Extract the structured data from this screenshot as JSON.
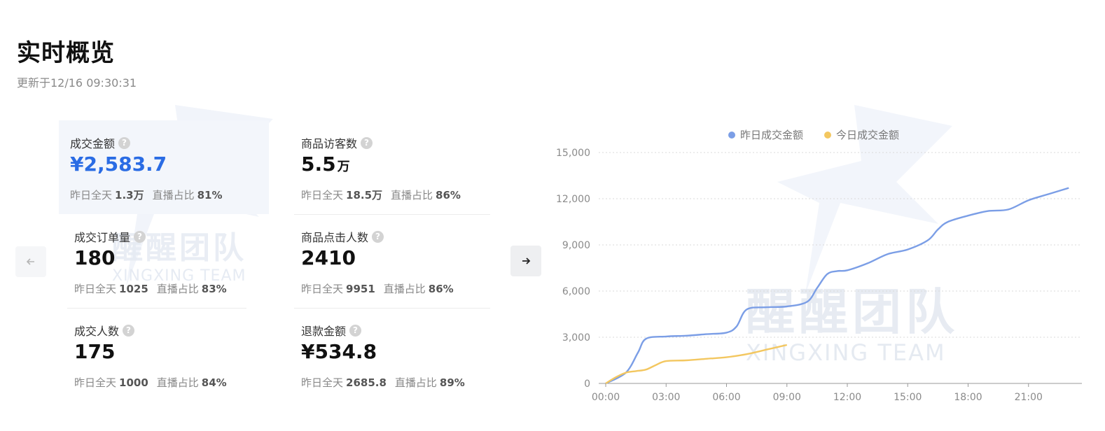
{
  "header": {
    "title": "实时概览",
    "update_time": "更新于12/16 09:30:31"
  },
  "nav": {
    "prev_icon": "arrow-left-icon",
    "next_icon": "arrow-right-icon"
  },
  "watermark": {
    "cn": "醒醒团队",
    "en": "XINGXING TEAM"
  },
  "metrics": [
    {
      "label": "成交金额",
      "value": "¥2,583.7",
      "unit": "",
      "yesterday_label": "昨日全天",
      "yesterday_value": "1.3万",
      "live_label": "直播占比",
      "live_value": "81%"
    },
    {
      "label": "商品访客数",
      "value": "5.5",
      "unit": "万",
      "yesterday_label": "昨日全天",
      "yesterday_value": "18.5万",
      "live_label": "直播占比",
      "live_value": "86%"
    },
    {
      "label": "成交订单量",
      "value": "180",
      "unit": "",
      "yesterday_label": "昨日全天",
      "yesterday_value": "1025",
      "live_label": "直播占比",
      "live_value": "83%"
    },
    {
      "label": "商品点击人数",
      "value": "2410",
      "unit": "",
      "yesterday_label": "昨日全天",
      "yesterday_value": "9951",
      "live_label": "直播占比",
      "live_value": "86%"
    },
    {
      "label": "成交人数",
      "value": "175",
      "unit": "",
      "yesterday_label": "昨日全天",
      "yesterday_value": "1000",
      "live_label": "直播占比",
      "live_value": "84%"
    },
    {
      "label": "退款金额",
      "value": "¥534.8",
      "unit": "",
      "yesterday_label": "昨日全天",
      "yesterday_value": "2685.8",
      "live_label": "直播占比",
      "live_value": "89%"
    }
  ],
  "chart_data": {
    "type": "line",
    "title": "",
    "xlabel": "",
    "ylabel": "",
    "ylim": [
      0,
      15000
    ],
    "yticks": [
      "0",
      "3,000",
      "6,000",
      "9,000",
      "12,000",
      "15,000"
    ],
    "xticks": [
      "00:00",
      "03:00",
      "06:00",
      "09:00",
      "12:00",
      "15:00",
      "18:00",
      "21:00"
    ],
    "xlim_hours": [
      0,
      24
    ],
    "legend_position": "top-center",
    "grid": true,
    "series": [
      {
        "name": "昨日成交金额",
        "color": "#7b9ee6",
        "x": [
          0,
          1,
          1.6,
          2,
          3,
          4,
          5,
          6,
          6.5,
          7,
          8,
          9,
          10,
          10.5,
          11,
          11.5,
          12,
          13,
          14,
          15,
          16,
          16.5,
          17,
          18,
          19,
          20,
          21,
          22,
          23
        ],
        "y": [
          0,
          700,
          2000,
          2900,
          3050,
          3100,
          3200,
          3300,
          3700,
          4800,
          4950,
          5000,
          5300,
          6200,
          7100,
          7300,
          7350,
          7800,
          8400,
          8700,
          9300,
          10000,
          10500,
          10900,
          11200,
          11300,
          11900,
          12300,
          12700
        ]
      },
      {
        "name": "今日成交金额",
        "color": "#f3c760",
        "x": [
          0,
          0.5,
          1,
          1.5,
          2,
          2.5,
          3,
          4,
          5,
          6,
          7,
          8,
          8.5,
          9
        ],
        "y": [
          0,
          400,
          700,
          800,
          900,
          1200,
          1450,
          1500,
          1600,
          1700,
          1900,
          2200,
          2350,
          2500
        ]
      }
    ]
  }
}
